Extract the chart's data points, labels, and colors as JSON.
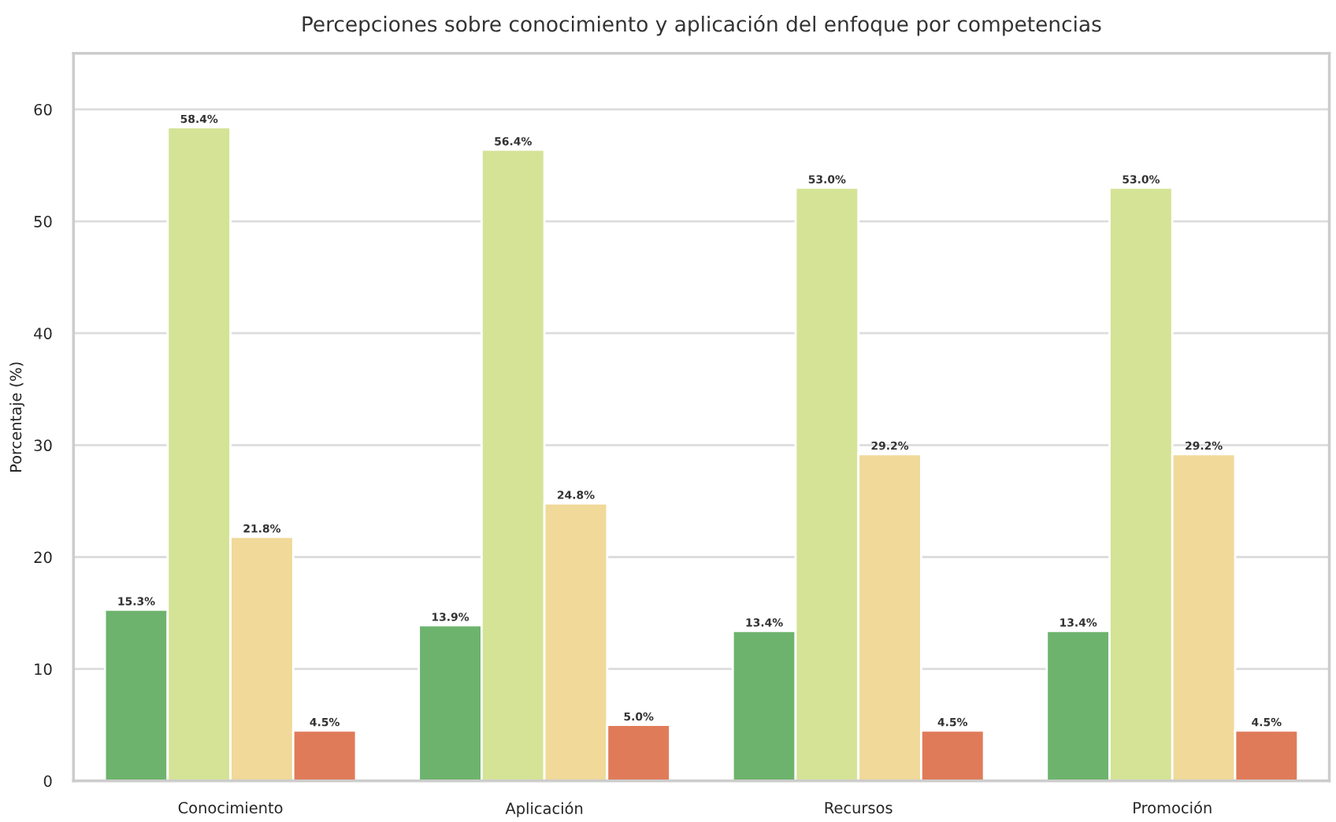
{
  "chart_data": {
    "type": "bar",
    "title": "Percepciones sobre conocimiento y aplicación del enfoque por competencias",
    "ylabel": "Porcentaje (%)",
    "categories": [
      "Conocimiento",
      "Aplicación",
      "Recursos",
      "Promoción"
    ],
    "series": [
      {
        "color": "#6db36d",
        "values": [
          15.3,
          13.9,
          13.4,
          13.4
        ],
        "value_labels": [
          "15.3%",
          "13.9%",
          "13.4%",
          "13.4%"
        ]
      },
      {
        "color": "#d4e396",
        "values": [
          58.4,
          56.4,
          53.0,
          53.0
        ],
        "value_labels": [
          "58.4%",
          "56.4%",
          "53.0%",
          "53.0%"
        ]
      },
      {
        "color": "#f0d999",
        "values": [
          21.8,
          24.8,
          29.2,
          29.2
        ],
        "value_labels": [
          "21.8%",
          "24.8%",
          "29.2%",
          "29.2%"
        ]
      },
      {
        "color": "#e07b5a",
        "values": [
          4.5,
          5.0,
          4.5,
          4.5
        ],
        "value_labels": [
          "4.5%",
          "5.0%",
          "4.5%",
          "4.5%"
        ]
      }
    ],
    "ylim": [
      0,
      65
    ],
    "yticks": [
      0,
      10,
      20,
      30,
      40,
      50,
      60
    ],
    "grid": "y"
  }
}
